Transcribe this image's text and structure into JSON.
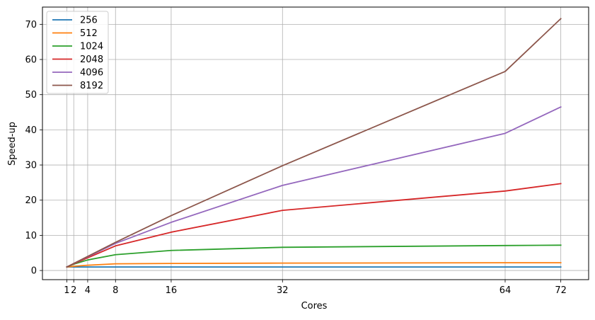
{
  "chart_data": {
    "type": "line",
    "title": "",
    "xlabel": "Cores",
    "ylabel": "Speed-up",
    "x": [
      1,
      2,
      4,
      8,
      16,
      32,
      64,
      72
    ],
    "x_tick_labels": [
      "1",
      "2",
      "4",
      "8",
      "16",
      "32",
      "64",
      "72"
    ],
    "y_ticks": [
      0,
      10,
      20,
      30,
      40,
      50,
      60,
      70
    ],
    "y_tick_labels": [
      "0",
      "10",
      "20",
      "30",
      "40",
      "50",
      "60",
      "70"
    ],
    "xlim": [
      -2.5,
      76.0
    ],
    "ylim": [
      -2.6,
      74.9
    ],
    "grid": true,
    "legend_position": "top-left",
    "series": [
      {
        "name": "256",
        "color": "#1f77b4",
        "values": [
          1.0,
          1.0,
          1.0,
          1.0,
          1.0,
          1.0,
          1.0,
          1.0
        ]
      },
      {
        "name": "512",
        "color": "#ff7f0e",
        "values": [
          1.0,
          1.2,
          1.5,
          1.9,
          2.0,
          2.1,
          2.2,
          2.2
        ]
      },
      {
        "name": "1024",
        "color": "#2ca02c",
        "values": [
          1.0,
          1.8,
          3.0,
          4.5,
          5.7,
          6.6,
          7.1,
          7.2
        ]
      },
      {
        "name": "2048",
        "color": "#d62728",
        "values": [
          1.0,
          1.9,
          3.6,
          7.0,
          10.9,
          17.1,
          22.6,
          24.7
        ]
      },
      {
        "name": "4096",
        "color": "#9467bd",
        "values": [
          1.0,
          2.0,
          3.9,
          7.7,
          13.7,
          24.2,
          39.0,
          46.5
        ]
      },
      {
        "name": "8192",
        "color": "#8c564b",
        "values": [
          1.0,
          2.0,
          4.0,
          8.0,
          15.6,
          29.8,
          56.6,
          71.6
        ]
      }
    ]
  }
}
